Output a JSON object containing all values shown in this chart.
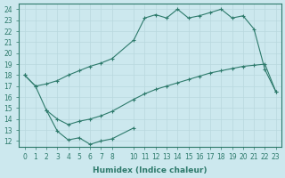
{
  "xlabel": "Humidex (Indice chaleur)",
  "bg_color": "#cce8ee",
  "line_color": "#2d7a6b",
  "grid_color": "#b8d8de",
  "curve_hi_x": [
    0,
    1,
    2,
    3,
    4,
    5,
    6,
    7,
    8,
    10,
    11,
    12,
    13,
    14,
    15,
    16,
    17,
    18,
    19,
    20,
    21,
    22,
    23
  ],
  "curve_hi_y": [
    18.0,
    17.0,
    17.2,
    17.5,
    18.0,
    18.4,
    18.8,
    19.1,
    19.5,
    21.2,
    23.2,
    23.5,
    23.2,
    24.0,
    23.2,
    23.4,
    23.7,
    24.0,
    23.2,
    23.4,
    22.2,
    18.5,
    16.5
  ],
  "curve_mid_x": [
    0,
    1,
    2,
    3,
    4,
    5,
    6,
    7,
    8,
    10,
    11,
    12,
    13,
    14,
    15,
    16,
    17,
    18,
    19,
    20,
    21,
    22,
    23
  ],
  "curve_mid_y": [
    18.0,
    17.0,
    14.8,
    14.0,
    13.5,
    13.8,
    14.0,
    14.3,
    14.7,
    15.8,
    16.3,
    16.7,
    17.0,
    17.3,
    17.6,
    17.9,
    18.2,
    18.4,
    18.6,
    18.8,
    18.9,
    19.0,
    16.5
  ],
  "curve_lo_x": [
    2,
    3,
    4,
    5,
    6,
    7,
    8,
    10
  ],
  "curve_lo_y": [
    14.8,
    12.9,
    12.1,
    12.3,
    11.7,
    12.0,
    12.2,
    13.2
  ],
  "xlim": [
    -0.5,
    23.5
  ],
  "ylim": [
    11.5,
    24.5
  ],
  "xticks": [
    0,
    1,
    2,
    3,
    4,
    5,
    6,
    7,
    8,
    10,
    11,
    12,
    13,
    14,
    15,
    16,
    17,
    18,
    19,
    20,
    21,
    22,
    23
  ],
  "yticks": [
    12,
    13,
    14,
    15,
    16,
    17,
    18,
    19,
    20,
    21,
    22,
    23,
    24
  ],
  "tick_fontsize": 5.5,
  "xlabel_fontsize": 6.5
}
